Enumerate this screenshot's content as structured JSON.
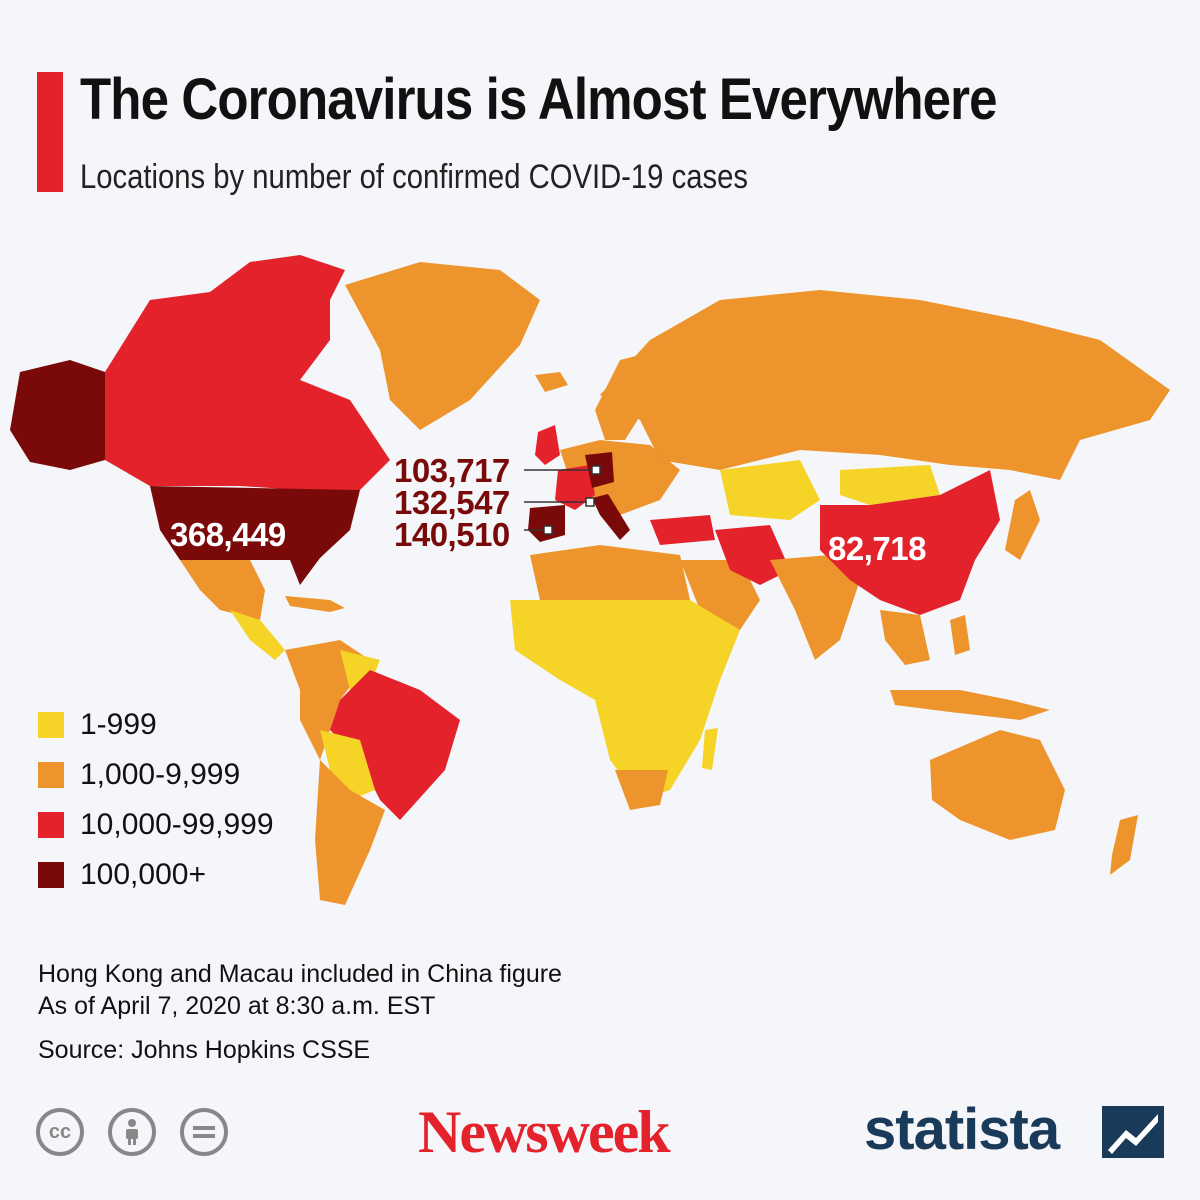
{
  "header": {
    "title": "The Coronavirus is Almost Everywhere",
    "subtitle": "Locations by number of confirmed COVID-19 cases"
  },
  "colors": {
    "accent": "#e3222b",
    "tier_1_999": "#f5d327",
    "tier_1000_9999": "#ee942c",
    "tier_10000_99999": "#e3222b",
    "tier_100000_plus": "#7a0a0a",
    "no_data": "#d4d4d4"
  },
  "legend": [
    {
      "label": "1-999",
      "color": "#f5d327"
    },
    {
      "label": "1,000-9,999",
      "color": "#ee942c"
    },
    {
      "label": "10,000-99,999",
      "color": "#e3222b"
    },
    {
      "label": "100,000+",
      "color": "#7a0a0a"
    }
  ],
  "callouts": {
    "usa": "368,449",
    "germany": "103,717",
    "italy": "132,547",
    "spain": "140,510",
    "china": "82,718"
  },
  "notes": {
    "line1": "Hong Kong and Macau included in China figure",
    "line2": "As of April 7, 2020 at 8:30 a.m. EST",
    "source": "Source: Johns Hopkins CSSE"
  },
  "license_icons": [
    "creative-commons-icon",
    "attribution-icon",
    "no-derivatives-icon"
  ],
  "brands": {
    "newsweek": "Newsweek",
    "statista": "statista"
  }
}
